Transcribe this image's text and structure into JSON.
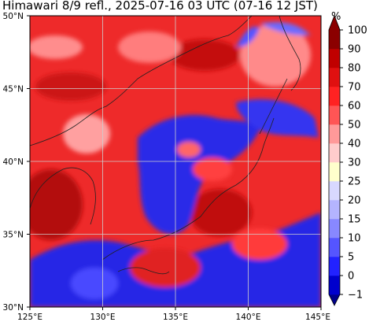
{
  "title": "Himawari 8/9 refl., 2025-07-16 03 UTC (07-16 12 JST)",
  "map": {
    "lon_range": [
      125,
      145
    ],
    "lat_range": [
      30,
      50
    ],
    "lat_ticks": [
      {
        "value": 50,
        "label": "50°N"
      },
      {
        "value": 45,
        "label": "45°N"
      },
      {
        "value": 40,
        "label": "40°N"
      },
      {
        "value": 35,
        "label": "35°N"
      },
      {
        "value": 30,
        "label": "30°N"
      }
    ],
    "lon_ticks": [
      {
        "value": 125,
        "label": "125°E"
      },
      {
        "value": 130,
        "label": "130°E"
      },
      {
        "value": 135,
        "label": "135°E"
      },
      {
        "value": 140,
        "label": "140°E"
      },
      {
        "value": 145,
        "label": "145°E"
      }
    ],
    "grid": true
  },
  "colorbar": {
    "unit": "%",
    "extend_min": true,
    "extend_max": true,
    "levels": [
      {
        "label": "−1",
        "color": "#00008b"
      },
      {
        "label": "0",
        "color": "#0000cd"
      },
      {
        "label": "5",
        "color": "#2222ff"
      },
      {
        "label": "10",
        "color": "#5555ff"
      },
      {
        "label": "15",
        "color": "#8888ff"
      },
      {
        "label": "20",
        "color": "#b4b4ff"
      },
      {
        "label": "25",
        "color": "#d8d8ff"
      },
      {
        "label": "30",
        "color": "#ffffcc"
      },
      {
        "label": "40",
        "color": "#ffcccc"
      },
      {
        "label": "50",
        "color": "#ff9999"
      },
      {
        "label": "60",
        "color": "#ff5555"
      },
      {
        "label": "70",
        "color": "#ff2222"
      },
      {
        "label": "80",
        "color": "#e01010"
      },
      {
        "label": "90",
        "color": "#c00000"
      },
      {
        "label": "100",
        "color": "#8b0000"
      }
    ]
  }
}
